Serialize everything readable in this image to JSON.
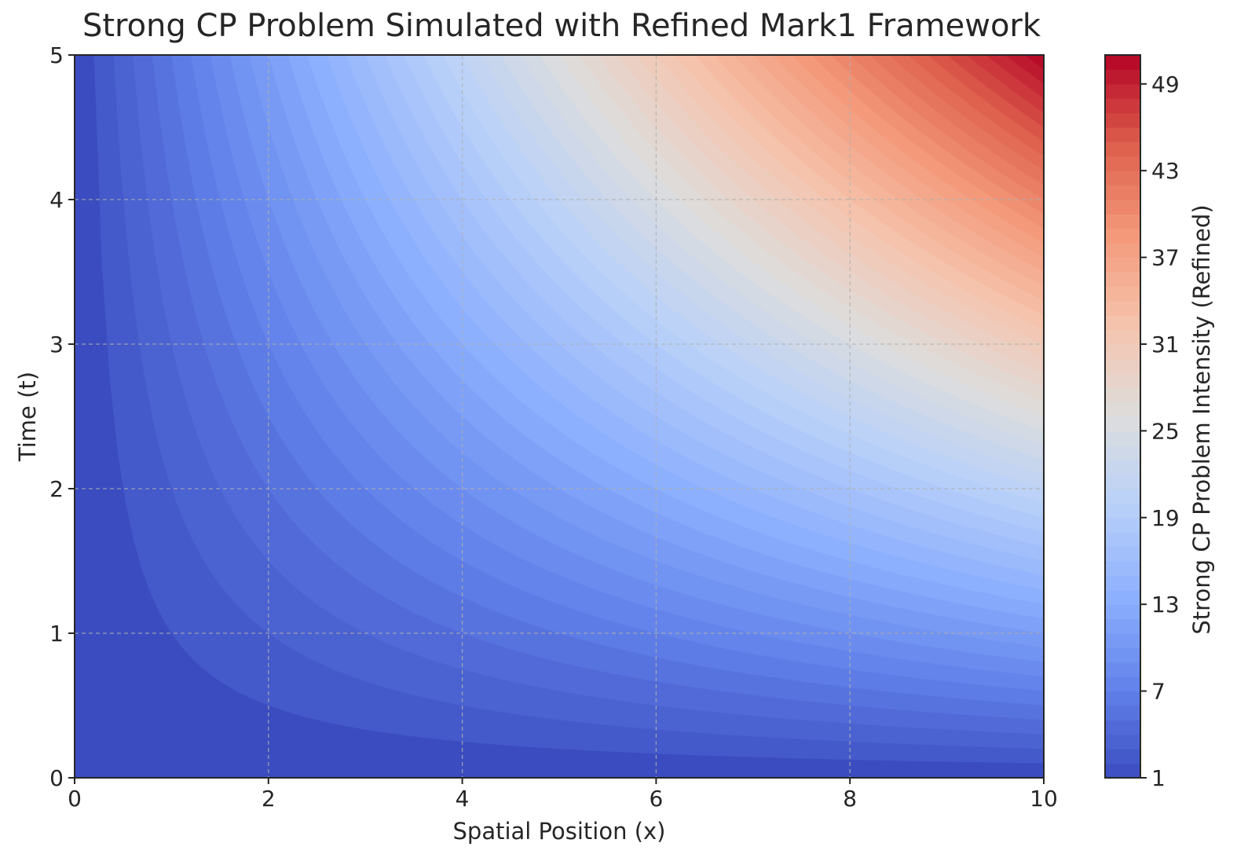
{
  "chart_data": {
    "type": "heatmap",
    "title": "Strong CP Problem Simulated with Refined Mark1 Framework",
    "xlabel": "Spatial Position (x)",
    "ylabel": "Time (t)",
    "xlim": [
      0,
      10
    ],
    "ylim": [
      0,
      5
    ],
    "x_ticks": [
      "0",
      "2",
      "4",
      "6",
      "8",
      "10"
    ],
    "y_ticks": [
      "0",
      "1",
      "2",
      "3",
      "4",
      "5"
    ],
    "grid": true,
    "colormap": "coolwarm",
    "field_model": "intensity ≈ 1 + x·t",
    "value_range": [
      1,
      51
    ],
    "colorbar": {
      "label": "Strong CP Problem Intensity (Refined)",
      "ticks": [
        "1",
        "7",
        "13",
        "19",
        "25",
        "31",
        "37",
        "43",
        "49"
      ]
    },
    "samples": [
      {
        "x": 0,
        "t": 0,
        "value": 1
      },
      {
        "x": 2,
        "t": 2,
        "value": 5
      },
      {
        "x": 4,
        "t": 3,
        "value": 13
      },
      {
        "x": 6,
        "t": 4,
        "value": 25
      },
      {
        "x": 8,
        "t": 4,
        "value": 33
      },
      {
        "x": 10,
        "t": 5,
        "value": 51
      }
    ]
  }
}
